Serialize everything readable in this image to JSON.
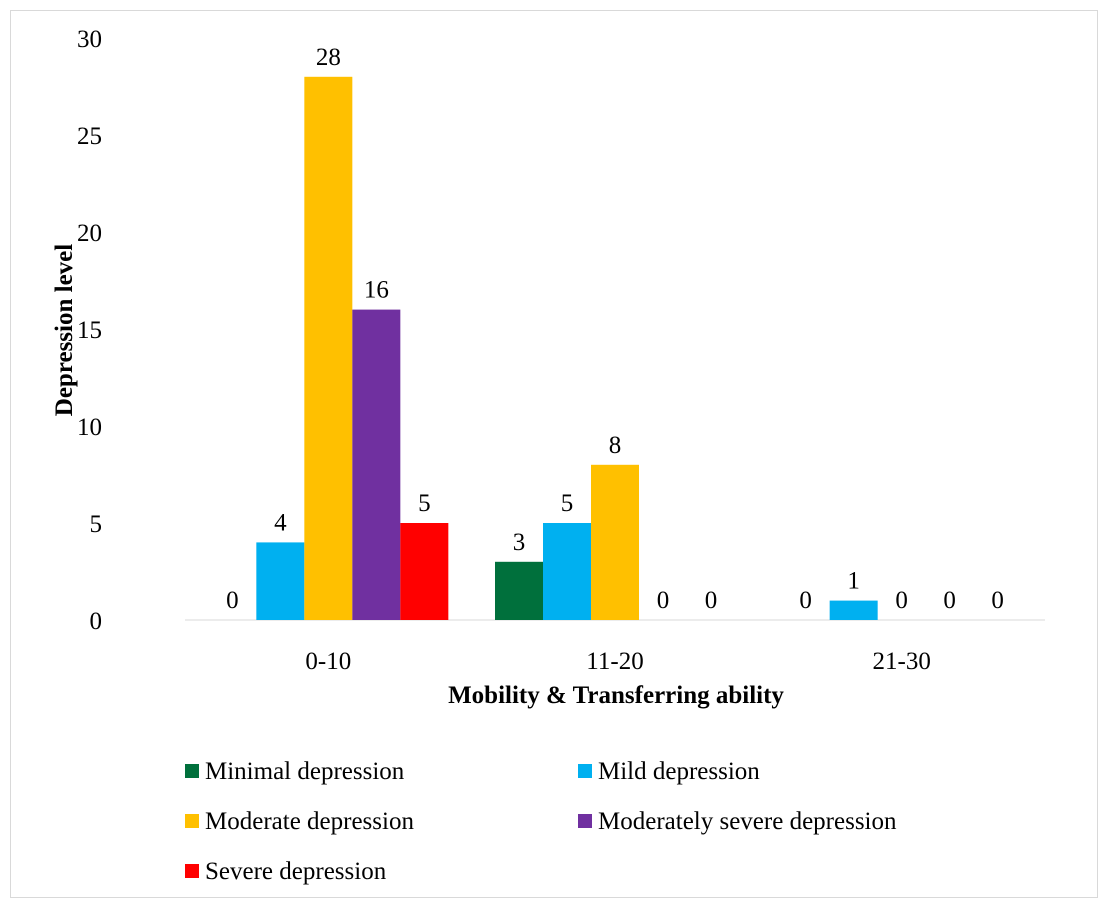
{
  "chart_data": {
    "type": "bar",
    "title": "",
    "xlabel": "Mobility & Transferring ability",
    "ylabel": "Depression level",
    "ylim": [
      0,
      30
    ],
    "yticks": [
      0,
      5,
      10,
      15,
      20,
      25,
      30
    ],
    "categories": [
      "0-10",
      "11-20",
      "21-30"
    ],
    "grid": false,
    "legend_position": "bottom",
    "series": [
      {
        "name": "Minimal depression",
        "color": "#00703C",
        "values": [
          0,
          3,
          0
        ]
      },
      {
        "name": "Mild depression",
        "color": "#00B0F0",
        "values": [
          4,
          5,
          1
        ]
      },
      {
        "name": "Moderate depression",
        "color": "#FFC000",
        "values": [
          28,
          8,
          0
        ]
      },
      {
        "name": "Moderately severe depression",
        "color": "#7030A0",
        "values": [
          16,
          0,
          0
        ]
      },
      {
        "name": "Severe depression",
        "color": "#FF0000",
        "values": [
          5,
          0,
          0
        ]
      }
    ]
  }
}
